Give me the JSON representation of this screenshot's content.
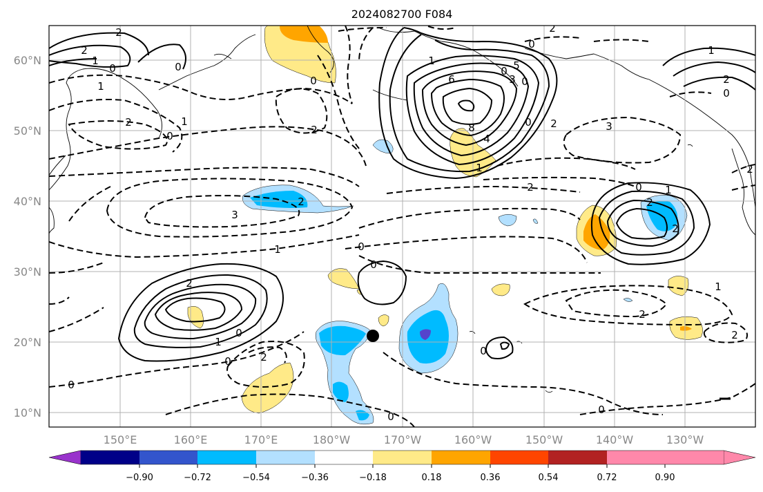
{
  "title": "2024082700 F084",
  "lat_labels": [
    "60°N",
    "50°N",
    "40°N",
    "30°N",
    "20°N",
    "10°N"
  ],
  "lon_labels": [
    "150°E",
    "160°E",
    "170°E",
    "180°W",
    "170°W",
    "160°W",
    "150°W",
    "140°W",
    "130°W"
  ],
  "colorbar": {
    "ticks": [
      "−0.90",
      "−0.72",
      "−0.54",
      "−0.36",
      "−0.18",
      "0.18",
      "0.36",
      "0.54",
      "0.72",
      "0.90"
    ],
    "colors": [
      "#9933cc",
      "#000088",
      "#3355cc",
      "#00bbff",
      "#b3e0ff",
      "#ffffff",
      "#ffea88",
      "#ffa500",
      "#ff4500",
      "#b22222",
      "#ff88aa"
    ],
    "extend": "both"
  },
  "contour_labels": [
    "2",
    "2",
    "1",
    "0",
    "0",
    "1",
    "1",
    "2",
    "0",
    "2",
    "0",
    "2",
    "0",
    "1",
    "6",
    "5",
    "3",
    "8",
    "4",
    "1",
    "0",
    "2",
    "2",
    "3",
    "2",
    "1",
    "0",
    "3",
    "1",
    "0",
    "0",
    "2",
    "2",
    "1",
    "0",
    "0",
    "2",
    "0",
    "2",
    "0",
    "0",
    "1",
    "2",
    "0",
    "2",
    "1",
    "2",
    "0",
    "2",
    "0",
    "0"
  ],
  "marker": {
    "lon": -174,
    "lat": 21
  }
}
